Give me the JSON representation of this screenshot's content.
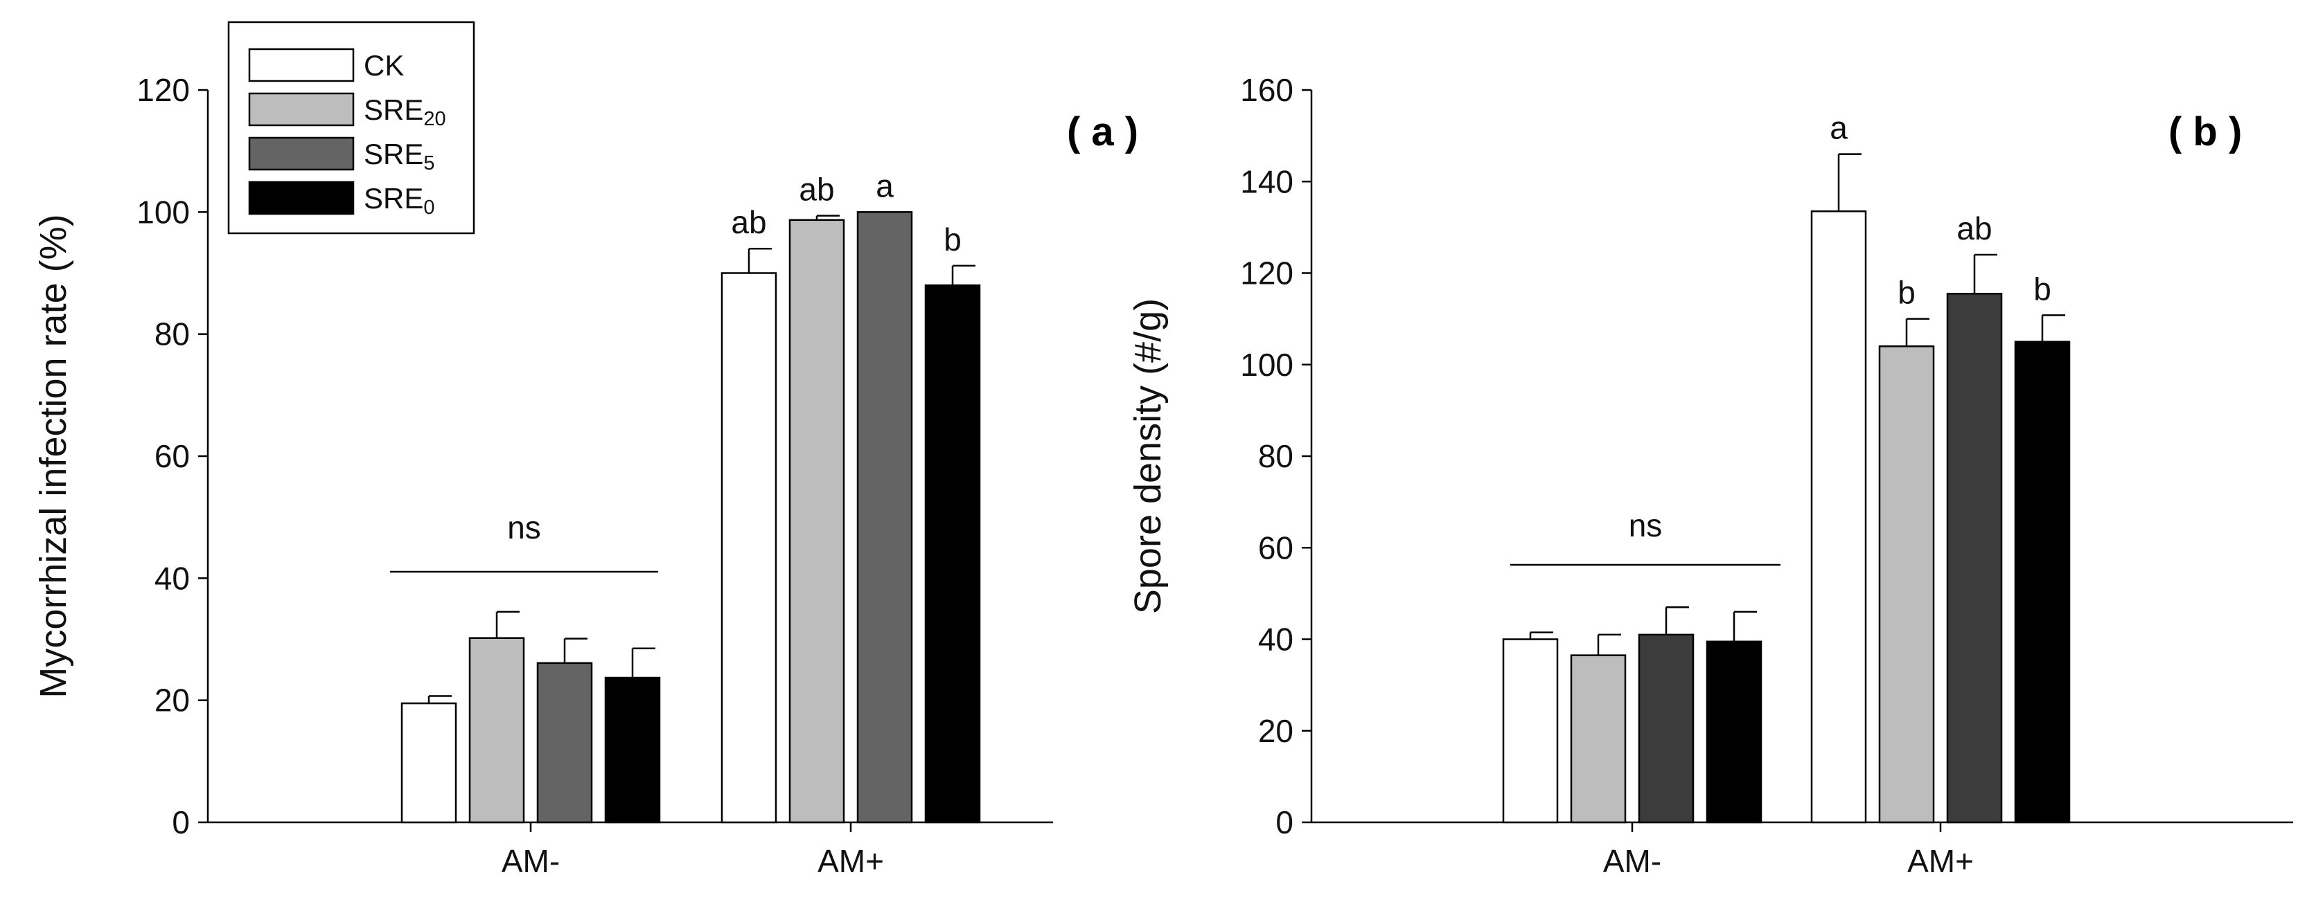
{
  "chart_data": [
    {
      "type": "bar",
      "panel_label": "( a )",
      "ylabel": "Mycorrhizal infection rate (%)",
      "xlabel": "",
      "ylim": [
        0,
        120
      ],
      "yticks": [
        0,
        20,
        40,
        60,
        80,
        100,
        120
      ],
      "categories": [
        "AM-",
        "AM+"
      ],
      "series": [
        {
          "name": "CK",
          "values": [
            19.5,
            90
          ],
          "errors": [
            1.2,
            4.0
          ],
          "color": "#ffffff"
        },
        {
          "name": "SRE20",
          "values": [
            30.2,
            98.7
          ],
          "errors": [
            4.3,
            0.7
          ],
          "color": "#bdbdbd"
        },
        {
          "name": "SRE5",
          "values": [
            26.1,
            100
          ],
          "errors": [
            4.0,
            0
          ],
          "color": "#646464"
        },
        {
          "name": "SRE0",
          "values": [
            23.7,
            88
          ],
          "errors": [
            4.8,
            3.2
          ],
          "color": "#000000"
        }
      ],
      "significance": [
        {
          "category_index": 0,
          "bracket": true,
          "label": "ns"
        },
        {
          "category_index": 1,
          "series_index": 0,
          "label": "ab"
        },
        {
          "category_index": 1,
          "series_index": 1,
          "label": "ab"
        },
        {
          "category_index": 1,
          "series_index": 2,
          "label": "a"
        },
        {
          "category_index": 1,
          "series_index": 3,
          "label": "b"
        }
      ],
      "legend": {
        "placement": "top-left",
        "entries": [
          {
            "base": "CK",
            "sub": ""
          },
          {
            "base": "SRE",
            "sub": "20"
          },
          {
            "base": "SRE",
            "sub": "5"
          },
          {
            "base": "SRE",
            "sub": "0"
          }
        ]
      }
    },
    {
      "type": "bar",
      "panel_label": "( b )",
      "ylabel": "Spore density (#/g)",
      "xlabel": "",
      "ylim": [
        0,
        160
      ],
      "yticks": [
        0,
        20,
        40,
        60,
        80,
        100,
        120,
        140,
        160
      ],
      "categories": [
        "AM-",
        "AM+"
      ],
      "series": [
        {
          "name": "CK",
          "values": [
            40,
            133.5
          ],
          "errors": [
            1.5,
            12.5
          ],
          "color": "#ffffff"
        },
        {
          "name": "SRE20",
          "values": [
            36.5,
            104
          ],
          "errors": [
            4.5,
            6.0
          ],
          "color": "#bdbdbd"
        },
        {
          "name": "SRE5",
          "values": [
            41,
            115.5
          ],
          "errors": [
            6.0,
            8.5
          ],
          "color": "#3c3c3c"
        },
        {
          "name": "SRE0",
          "values": [
            39.5,
            105
          ],
          "errors": [
            6.5,
            5.8
          ],
          "color": "#000000"
        }
      ],
      "significance": [
        {
          "category_index": 0,
          "bracket": true,
          "label": "ns"
        },
        {
          "category_index": 1,
          "series_index": 0,
          "label": "a"
        },
        {
          "category_index": 1,
          "series_index": 1,
          "label": "b"
        },
        {
          "category_index": 1,
          "series_index": 2,
          "label": "ab"
        },
        {
          "category_index": 1,
          "series_index": 3,
          "label": "b"
        }
      ]
    }
  ]
}
